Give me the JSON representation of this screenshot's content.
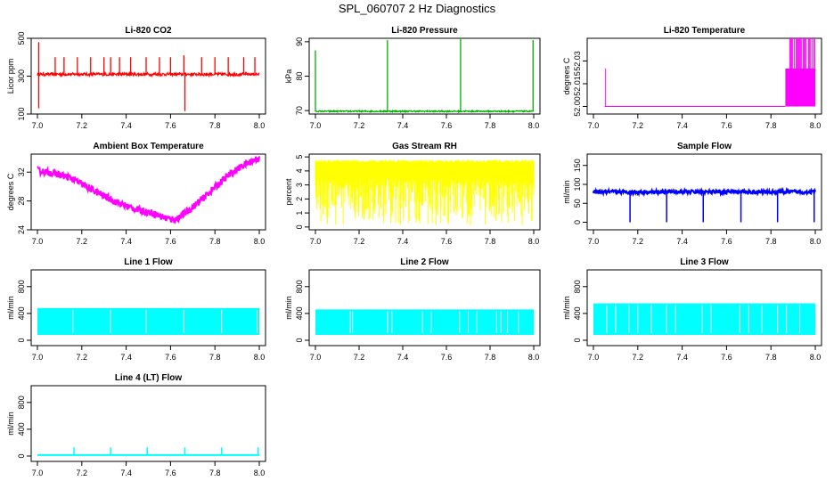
{
  "figure": {
    "title": "SPL_060707  2 Hz Diagnostics"
  },
  "chart_data": [
    {
      "type": "line",
      "title": "Li-820 CO2",
      "ylabel": "Licor ppm",
      "xlim": [
        7.0,
        8.0
      ],
      "xticks": [
        "7.0",
        "7.2",
        "7.4",
        "7.6",
        "7.8",
        "8.0"
      ],
      "ylim": [
        100,
        500
      ],
      "yticks": [
        100,
        300,
        500
      ],
      "ytick_labels": [
        "100",
        "300",
        "500"
      ],
      "color": "#ff0000",
      "series": [
        {
          "name": "CO2",
          "baseline": 310,
          "band": 8,
          "spikes": [
            {
              "x": 7.006,
              "y": 480
            },
            {
              "x": 7.006,
              "y": 130
            },
            {
              "x": 7.08,
              "y": 400
            },
            {
              "x": 7.12,
              "y": 400
            },
            {
              "x": 7.18,
              "y": 400
            },
            {
              "x": 7.24,
              "y": 400
            },
            {
              "x": 7.3,
              "y": 400
            },
            {
              "x": 7.33,
              "y": 400
            },
            {
              "x": 7.37,
              "y": 400
            },
            {
              "x": 7.42,
              "y": 400
            },
            {
              "x": 7.49,
              "y": 400
            },
            {
              "x": 7.55,
              "y": 400
            },
            {
              "x": 7.6,
              "y": 400
            },
            {
              "x": 7.66,
              "y": 410
            },
            {
              "x": 7.665,
              "y": 115
            },
            {
              "x": 7.74,
              "y": 400
            },
            {
              "x": 7.8,
              "y": 400
            },
            {
              "x": 7.86,
              "y": 400
            },
            {
              "x": 7.93,
              "y": 400
            },
            {
              "x": 7.98,
              "y": 400
            }
          ]
        }
      ]
    },
    {
      "type": "line",
      "title": "Li-820 Pressure",
      "ylabel": "kPa",
      "xlim": [
        7.0,
        8.0
      ],
      "xticks": [
        "7.0",
        "7.2",
        "7.4",
        "7.6",
        "7.8",
        "8.0"
      ],
      "ylim": [
        69,
        91
      ],
      "yticks": [
        70,
        80,
        90
      ],
      "ytick_labels": [
        "70",
        "80",
        "90"
      ],
      "color": "#00b000",
      "series": [
        {
          "name": "Pressure",
          "baseline": 69.8,
          "band": 0.2,
          "spikes": [
            {
              "x": 7.0,
              "y": 87.5
            },
            {
              "x": 7.33,
              "y": 90.5
            },
            {
              "x": 7.665,
              "y": 91
            },
            {
              "x": 7.997,
              "y": 90.5
            }
          ]
        }
      ]
    },
    {
      "type": "line",
      "title": "Li-820 Temperature",
      "ylabel": "degrees C",
      "xlim": [
        7.0,
        8.0
      ],
      "xticks": [
        "7.0",
        "7.2",
        "7.4",
        "7.6",
        "7.8",
        "8.0"
      ],
      "ylim": [
        51.995,
        52.045
      ],
      "yticks": [
        52.0,
        52.015,
        52.03
      ],
      "ytick_labels": [
        "52.00",
        "52.015",
        "52.03"
      ],
      "color": "#ff00ff",
      "series": [
        {
          "name": "Temperature",
          "start_x": 7.05,
          "baseline": 52.0,
          "spike": {
            "x": 7.055,
            "y": 52.025
          },
          "step": {
            "x": 7.865,
            "y": 52.025
          },
          "oscillation_from": 7.885,
          "max": 52.05
        }
      ]
    },
    {
      "type": "line",
      "title": "Ambient Box Temperature",
      "ylabel": "degrees C",
      "xlim": [
        7.0,
        8.0
      ],
      "xticks": [
        "7.0",
        "7.2",
        "7.4",
        "7.6",
        "7.8",
        "8.0"
      ],
      "ylim": [
        24,
        34.5
      ],
      "yticks": [
        24,
        28,
        32
      ],
      "ytick_labels": [
        "24",
        "28",
        "32"
      ],
      "color": "#ff00ff",
      "series": [
        {
          "name": "Ambient",
          "band": 0.5,
          "points": [
            [
              7.0,
              32.2
            ],
            [
              7.08,
              31.8
            ],
            [
              7.15,
              31.2
            ],
            [
              7.22,
              30.0
            ],
            [
              7.3,
              28.7
            ],
            [
              7.38,
              27.5
            ],
            [
              7.45,
              26.8
            ],
            [
              7.52,
              26.3
            ],
            [
              7.58,
              25.6
            ],
            [
              7.62,
              25.4
            ],
            [
              7.68,
              26.6
            ],
            [
              7.74,
              28.2
            ],
            [
              7.8,
              29.9
            ],
            [
              7.86,
              31.5
            ],
            [
              7.92,
              32.8
            ],
            [
              7.97,
              33.6
            ],
            [
              8.0,
              34.0
            ]
          ]
        }
      ]
    },
    {
      "type": "line",
      "title": "Gas Stream RH",
      "ylabel": "percent",
      "xlim": [
        7.0,
        8.0
      ],
      "xticks": [
        "7.0",
        "7.2",
        "7.4",
        "7.6",
        "7.8",
        "8.0"
      ],
      "ylim": [
        -0.2,
        5.2
      ],
      "yticks": [
        0,
        1,
        2,
        3,
        4,
        5
      ],
      "ytick_labels": [
        "0",
        "1",
        "2",
        "3",
        "4",
        "5"
      ],
      "color": "#ffff00",
      "series": [
        {
          "name": "RH",
          "band_low": 3.5,
          "band_high": 4.6,
          "min": 0.1,
          "max": 4.8
        }
      ]
    },
    {
      "type": "line",
      "title": "Sample Flow",
      "ylabel": "ml/min",
      "xlim": [
        7.0,
        8.0
      ],
      "xticks": [
        "7.0",
        "7.2",
        "7.4",
        "7.6",
        "7.8",
        "8.0"
      ],
      "ylim": [
        -20,
        180
      ],
      "yticks": [
        0,
        50,
        100,
        150
      ],
      "ytick_labels": [
        "0",
        "50",
        "100",
        "150"
      ],
      "color": "#0000ff",
      "series": [
        {
          "name": "Sample",
          "baseline": 80,
          "band": 5,
          "dips": [
            7.165,
            7.33,
            7.495,
            7.665,
            7.83,
            7.995
          ]
        }
      ]
    },
    {
      "type": "line",
      "title": "Line 1 Flow",
      "ylabel": "ml/min",
      "xlim": [
        7.0,
        8.0
      ],
      "xticks": [
        "7.0",
        "7.2",
        "7.4",
        "7.6",
        "7.8",
        "8.0"
      ],
      "ylim": [
        -80,
        1050
      ],
      "yticks": [
        0,
        400,
        800
      ],
      "ytick_labels": [
        "0",
        "400",
        "800"
      ],
      "color": "#00ffff",
      "series": [
        {
          "name": "Line 1",
          "low": 80,
          "high": 480,
          "gaps": [
            7.16,
            7.33,
            7.49,
            7.66,
            7.83,
            7.99
          ]
        }
      ]
    },
    {
      "type": "line",
      "title": "Line 2 Flow",
      "ylabel": "ml/min",
      "xlim": [
        7.0,
        8.0
      ],
      "xticks": [
        "7.0",
        "7.2",
        "7.4",
        "7.6",
        "7.8",
        "8.0"
      ],
      "ylim": [
        -80,
        1050
      ],
      "yticks": [
        0,
        400,
        800
      ],
      "ytick_labels": [
        "0",
        "400",
        "800"
      ],
      "color": "#00ffff",
      "series": [
        {
          "name": "Line 2",
          "low": 80,
          "high": 460,
          "gaps": [
            7.16,
            7.17,
            7.33,
            7.35,
            7.49,
            7.53,
            7.66,
            7.7,
            7.74,
            7.83,
            7.85,
            7.88,
            7.93
          ]
        }
      ]
    },
    {
      "type": "line",
      "title": "Line 3 Flow",
      "ylabel": "ml/min",
      "xlim": [
        7.0,
        8.0
      ],
      "xticks": [
        "7.0",
        "7.2",
        "7.4",
        "7.6",
        "7.8",
        "8.0"
      ],
      "ylim": [
        -80,
        1050
      ],
      "yticks": [
        0,
        400,
        800
      ],
      "ytick_labels": [
        "0",
        "400",
        "800"
      ],
      "color": "#00ffff",
      "series": [
        {
          "name": "Line 3",
          "low": 80,
          "high": 550,
          "gaps": [
            7.06,
            7.1,
            7.16,
            7.2,
            7.26,
            7.33,
            7.37,
            7.49,
            7.53,
            7.66,
            7.7,
            7.76,
            7.83,
            7.87,
            7.93
          ]
        }
      ]
    },
    {
      "type": "line",
      "title": "Line 4 (LT) Flow",
      "ylabel": "ml/min",
      "xlim": [
        7.0,
        8.0
      ],
      "xticks": [
        "7.0",
        "7.2",
        "7.4",
        "7.6",
        "7.8",
        "8.0"
      ],
      "ylim": [
        -80,
        1050
      ],
      "yticks": [
        0,
        400,
        800
      ],
      "ytick_labels": [
        "0",
        "400",
        "800"
      ],
      "color": "#00ffff",
      "series": [
        {
          "name": "Line 4 (LT)",
          "baseline": 15,
          "spikes": [
            7.165,
            7.33,
            7.495,
            7.665,
            7.83,
            7.995
          ],
          "spike_height": 130
        }
      ]
    }
  ]
}
